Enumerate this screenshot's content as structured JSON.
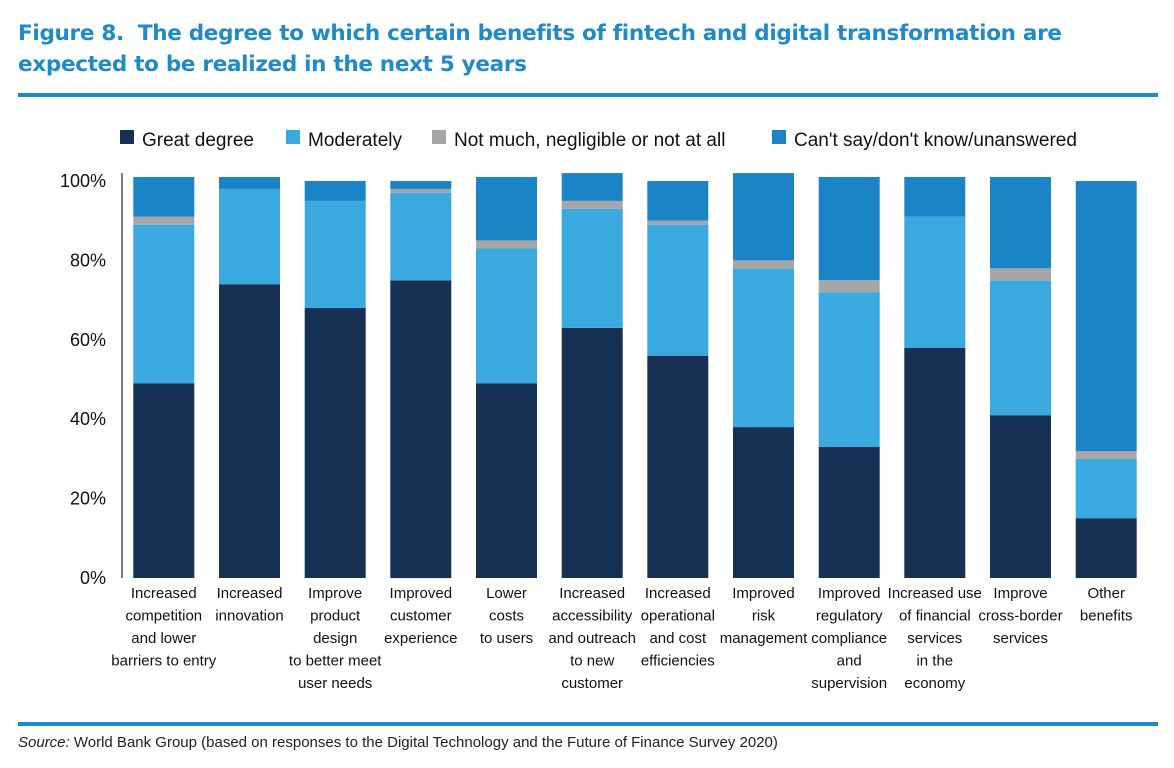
{
  "figure": {
    "number": "Figure 8.",
    "title": "The degree to which certain benefits of fintech and digital transformation are expected to be realized in the next 5 years",
    "source_label": "Source:",
    "source_text": " World Bank Group (based on responses to the Digital Technology and the Future of Finance Survey 2020)"
  },
  "colors": {
    "Great degree": "#163154",
    "Moderately": "#3aa9df",
    "Not much, negligible or not at all": "#a6a6a6",
    "Can't say/don't know/unanswered": "#1a84c7",
    "accent": "#1f8ac9"
  },
  "chart_data": {
    "type": "bar",
    "stacked": true,
    "title": "",
    "xlabel": "",
    "ylabel": "",
    "ylim": [
      0,
      100
    ],
    "y_ticks": [
      "0%",
      "20%",
      "40%",
      "60%",
      "80%",
      "100%"
    ],
    "legend_position": "top",
    "categories": [
      [
        "Increased",
        "competition",
        "and lower",
        "barriers to entry"
      ],
      [
        "Increased",
        "innovation"
      ],
      [
        "Improve",
        "product",
        "design",
        "to better meet",
        "user needs"
      ],
      [
        "Improved",
        "customer",
        "experience"
      ],
      [
        "Lower",
        "costs",
        "to users"
      ],
      [
        "Increased",
        "accessibility",
        "and outreach",
        "to new",
        "customer"
      ],
      [
        "Increased",
        "operational",
        "and cost",
        "efficiencies"
      ],
      [
        "Improved",
        "risk",
        "management"
      ],
      [
        "Improved",
        "regulatory",
        "compliance",
        "and",
        "supervision"
      ],
      [
        "Increased use",
        "of financial",
        "services",
        "in the",
        "economy"
      ],
      [
        "Improve",
        "cross-border",
        "services"
      ],
      [
        "Other",
        "benefits"
      ]
    ],
    "series": [
      {
        "name": "Great degree",
        "values": [
          49,
          74,
          68,
          75,
          49,
          63,
          56,
          38,
          33,
          58,
          41,
          15
        ]
      },
      {
        "name": "Moderately",
        "values": [
          40,
          24,
          27,
          22,
          34,
          30,
          33,
          40,
          39,
          33,
          34,
          15
        ]
      },
      {
        "name": "Not much, negligible or not at all",
        "values": [
          2,
          0,
          0,
          1,
          2,
          2,
          1,
          2,
          3,
          0,
          3,
          2
        ]
      },
      {
        "name": "Can't say/don't know/unanswered",
        "values": [
          10,
          3,
          5,
          2,
          16,
          7,
          10,
          22,
          26,
          10,
          23,
          68
        ]
      }
    ]
  }
}
